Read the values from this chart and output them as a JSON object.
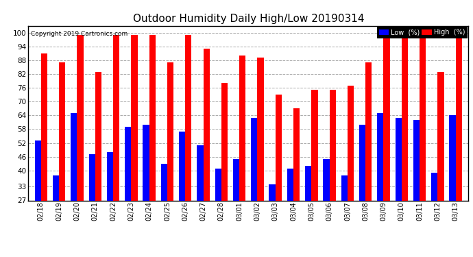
{
  "title": "Outdoor Humidity Daily High/Low 20190314",
  "copyright": "Copyright 2019 Cartronics.com",
  "categories": [
    "02/18",
    "02/19",
    "02/20",
    "02/21",
    "02/22",
    "02/23",
    "02/24",
    "02/25",
    "02/26",
    "02/27",
    "02/28",
    "03/01",
    "03/02",
    "03/03",
    "03/04",
    "03/05",
    "03/06",
    "03/07",
    "03/08",
    "03/09",
    "03/10",
    "03/11",
    "03/12",
    "03/13"
  ],
  "high_values": [
    91,
    87,
    99,
    83,
    99,
    99,
    99,
    87,
    99,
    93,
    78,
    90,
    89,
    73,
    67,
    75,
    75,
    77,
    87,
    99,
    99,
    99,
    83,
    100
  ],
  "low_values": [
    53,
    38,
    65,
    47,
    48,
    59,
    60,
    43,
    57,
    51,
    41,
    45,
    63,
    34,
    41,
    42,
    45,
    38,
    60,
    65,
    63,
    62,
    39,
    64
  ],
  "high_color": "#ff0000",
  "low_color": "#0000ff",
  "bg_color": "#ffffff",
  "plot_bg_color": "#ffffff",
  "grid_color": "#aaaaaa",
  "ylim_min": 27,
  "ylim_max": 103,
  "yticks": [
    27,
    33,
    40,
    46,
    52,
    58,
    64,
    70,
    76,
    82,
    88,
    94,
    100
  ],
  "title_fontsize": 11,
  "bar_width": 0.35,
  "legend_low_label": "Low  (%)",
  "legend_high_label": "High  (%)"
}
